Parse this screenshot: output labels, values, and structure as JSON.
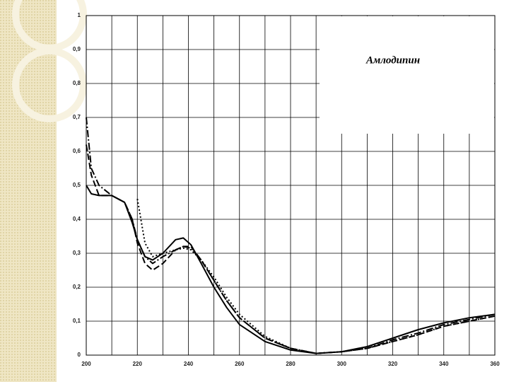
{
  "chart_data": {
    "type": "line",
    "annotation": "Амлодипин",
    "x": [
      200,
      202,
      205,
      210,
      215,
      218,
      220,
      223,
      226,
      230,
      235,
      238,
      241,
      245,
      250,
      255,
      260,
      270,
      280,
      290,
      300,
      310,
      320,
      330,
      340,
      350,
      360
    ],
    "series": [
      {
        "color": "#000000",
        "dash": "solid",
        "values": [
          0.5,
          0.475,
          0.47,
          0.47,
          0.45,
          0.39,
          0.34,
          0.29,
          0.28,
          0.3,
          0.34,
          0.345,
          0.325,
          0.27,
          0.2,
          0.14,
          0.09,
          0.04,
          0.015,
          0.005,
          0.01,
          0.025,
          0.05,
          0.075,
          0.095,
          0.11,
          0.12
        ]
      },
      {
        "color": "#000000",
        "dash": "dashed",
        "values": [
          0.62,
          0.53,
          0.47,
          0.47,
          0.45,
          0.4,
          0.33,
          0.27,
          0.25,
          0.27,
          0.31,
          0.32,
          0.32,
          0.28,
          0.22,
          0.16,
          0.11,
          0.05,
          0.02,
          0.005,
          0.01,
          0.02,
          0.04,
          0.06,
          0.085,
          0.1,
          0.115
        ]
      },
      {
        "color": "#000000",
        "dash": "dashdot",
        "values": [
          0.7,
          0.55,
          0.5,
          0.47,
          0.45,
          0.4,
          0.34,
          0.29,
          0.27,
          0.29,
          0.31,
          0.32,
          0.315,
          0.28,
          0.22,
          0.16,
          0.11,
          0.05,
          0.02,
          0.005,
          0.01,
          0.02,
          0.045,
          0.065,
          0.09,
          0.105,
          0.12
        ]
      },
      {
        "color": "#000000",
        "dash": "dotted",
        "values": [
          null,
          null,
          null,
          null,
          null,
          null,
          0.46,
          0.33,
          0.29,
          0.3,
          0.31,
          0.315,
          0.31,
          0.28,
          0.23,
          0.17,
          0.12,
          0.055,
          0.02,
          0.005,
          0.01,
          0.02,
          0.04,
          0.06,
          0.085,
          0.1,
          0.115
        ]
      }
    ],
    "xlim": [
      200,
      360
    ],
    "xticks": [
      200,
      220,
      240,
      260,
      280,
      300,
      320,
      340,
      360
    ],
    "xgrid": [
      210,
      230,
      250,
      270,
      290,
      310,
      330,
      350
    ],
    "ylim": [
      0,
      1
    ],
    "yticks": [
      0,
      {
        "value": 0.1,
        "label": "0,1"
      },
      {
        "value": 0.2,
        "label": "0,2"
      },
      {
        "value": 0.3,
        "label": "0,3"
      },
      {
        "value": 0.4,
        "label": "0,4"
      },
      {
        "value": 0.5,
        "label": "0,5"
      },
      {
        "value": 0.6,
        "label": "0,6"
      },
      {
        "value": 0.7,
        "label": "0,7"
      },
      {
        "value": 0.8,
        "label": "0,8"
      },
      {
        "value": 0.9,
        "label": "0,9"
      },
      1
    ],
    "grid": true
  }
}
